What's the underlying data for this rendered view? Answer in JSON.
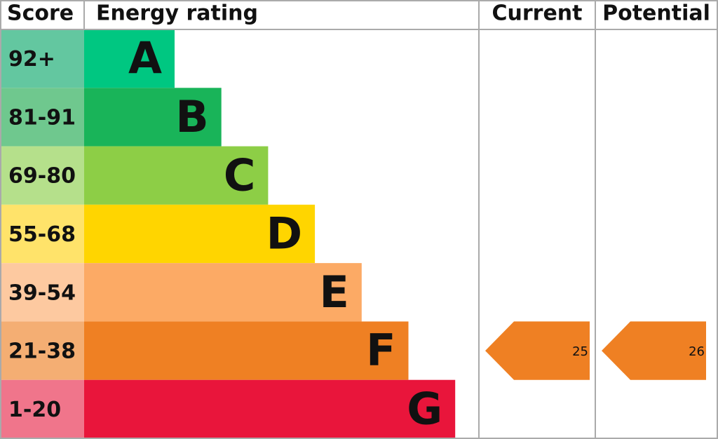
{
  "chart_data": {
    "type": "epc",
    "headers": [
      "Score",
      "Energy rating",
      "Current",
      "Potential"
    ],
    "bands": [
      {
        "score": "92+",
        "letter": "A",
        "color": "#00c781",
        "score_color": "#63c7a0"
      },
      {
        "score": "81-91",
        "letter": "B",
        "color": "#19b459",
        "score_color": "#6fc88e"
      },
      {
        "score": "69-80",
        "letter": "C",
        "color": "#8dce46",
        "score_color": "#b5e08b"
      },
      {
        "score": "55-68",
        "letter": "D",
        "color": "#ffd500",
        "score_color": "#ffe36a"
      },
      {
        "score": "39-54",
        "letter": "E",
        "color": "#fcaa65",
        "score_color": "#fdc9a0"
      },
      {
        "score": "21-38",
        "letter": "F",
        "color": "#ef8023",
        "score_color": "#f4ae73"
      },
      {
        "score": "1-20",
        "letter": "G",
        "color": "#e9153b",
        "score_color": "#f0758b"
      }
    ],
    "current": 25,
    "potential": 26
  }
}
